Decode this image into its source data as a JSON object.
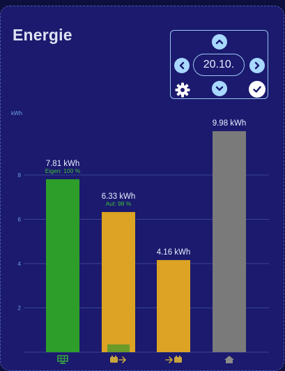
{
  "header": {
    "title": "Energie"
  },
  "date_nav": {
    "date": "20.10."
  },
  "colors": {
    "pv": "#2e9e2a",
    "battery": "#dca324",
    "grid": "#dca324",
    "home": "#7a7a7a",
    "self_overlay": "#6a9a2a",
    "gridline": "#39448f",
    "axis_text": "#6fa3e2",
    "value_text": "#e8ecff",
    "sub_text": "#3fbf3a",
    "icon": "#c9a43a"
  },
  "chart_data": {
    "type": "bar",
    "ylabel": "kWh",
    "ylim": [
      0,
      11.5
    ],
    "yticks": [
      2,
      4,
      6,
      8
    ],
    "categories": [
      "solar-panel-icon",
      "battery-out-icon",
      "grid-in-icon",
      "home-icon"
    ],
    "values": [
      7.81,
      6.33,
      4.16,
      9.98
    ],
    "value_labels": [
      "7.81 kWh",
      "6.33 kWh",
      "4.16 kWh",
      "9.98 kWh"
    ],
    "sub_labels": [
      "Eigen: 100 %",
      "Aut: 98 %",
      "",
      ""
    ],
    "bar_colors": [
      "#2e9e2a",
      "#dca324",
      "#dca324",
      "#7a7a7a"
    ],
    "overlay": {
      "bar_index": 1,
      "value": 0.35,
      "color": "#6a9a2a"
    },
    "grid": true
  }
}
